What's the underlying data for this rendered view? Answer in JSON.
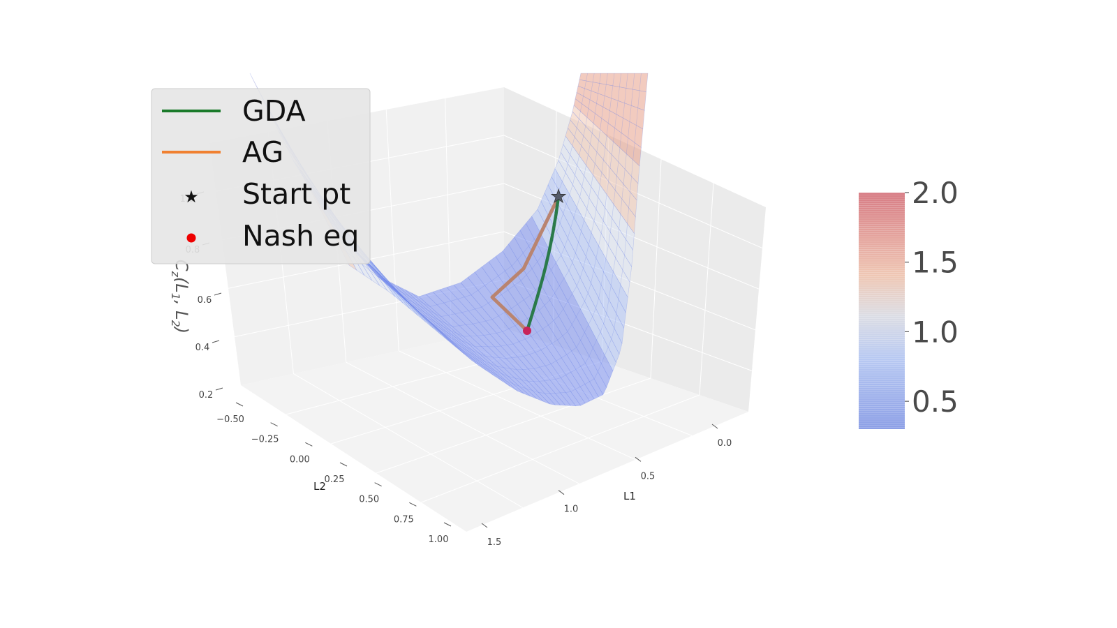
{
  "chart_data": {
    "type": "surface3d",
    "title": "",
    "xlabel": "L1",
    "ylabel": "L2",
    "zlabel_main": "C",
    "zlabel_sub": "z",
    "zlabel_args": "(L",
    "zlabel_sub1": "1",
    "zlabel_mid": ", L",
    "zlabel_sub2": "2",
    "zlabel_end": ")",
    "x_ticks": [
      "1.5",
      "1.0",
      "0.5",
      "0.0"
    ],
    "y_ticks": [
      "−0.50",
      "−0.25",
      "0.00",
      "0.25",
      "0.50",
      "0.75",
      "1.00"
    ],
    "z_ticks": [
      "0.2",
      "0.4",
      "0.6",
      "0.8",
      "1.0"
    ],
    "colorbar": {
      "colormap": "coolwarm",
      "range": [
        0.3,
        2.0
      ],
      "ticks": [
        "2.0",
        "1.5",
        "1.0",
        "0.5"
      ],
      "tick_values": [
        2.0,
        1.5,
        1.0,
        0.5
      ]
    },
    "surface_colors": [
      "#7b8ff0",
      "#b0c4f8",
      "#dde4f3",
      "#f0c8b4",
      "#e8a08a"
    ],
    "series": [
      {
        "name": "GDA",
        "color": "#1a7a2a"
      },
      {
        "name": "AG",
        "color": "#f08030"
      }
    ],
    "markers": [
      {
        "name": "Start pt",
        "symbol": "★",
        "color": "#111111"
      },
      {
        "name": "Nash eq",
        "symbol": "●",
        "color": "#ee0000"
      }
    ],
    "legend_position": "top-left"
  }
}
